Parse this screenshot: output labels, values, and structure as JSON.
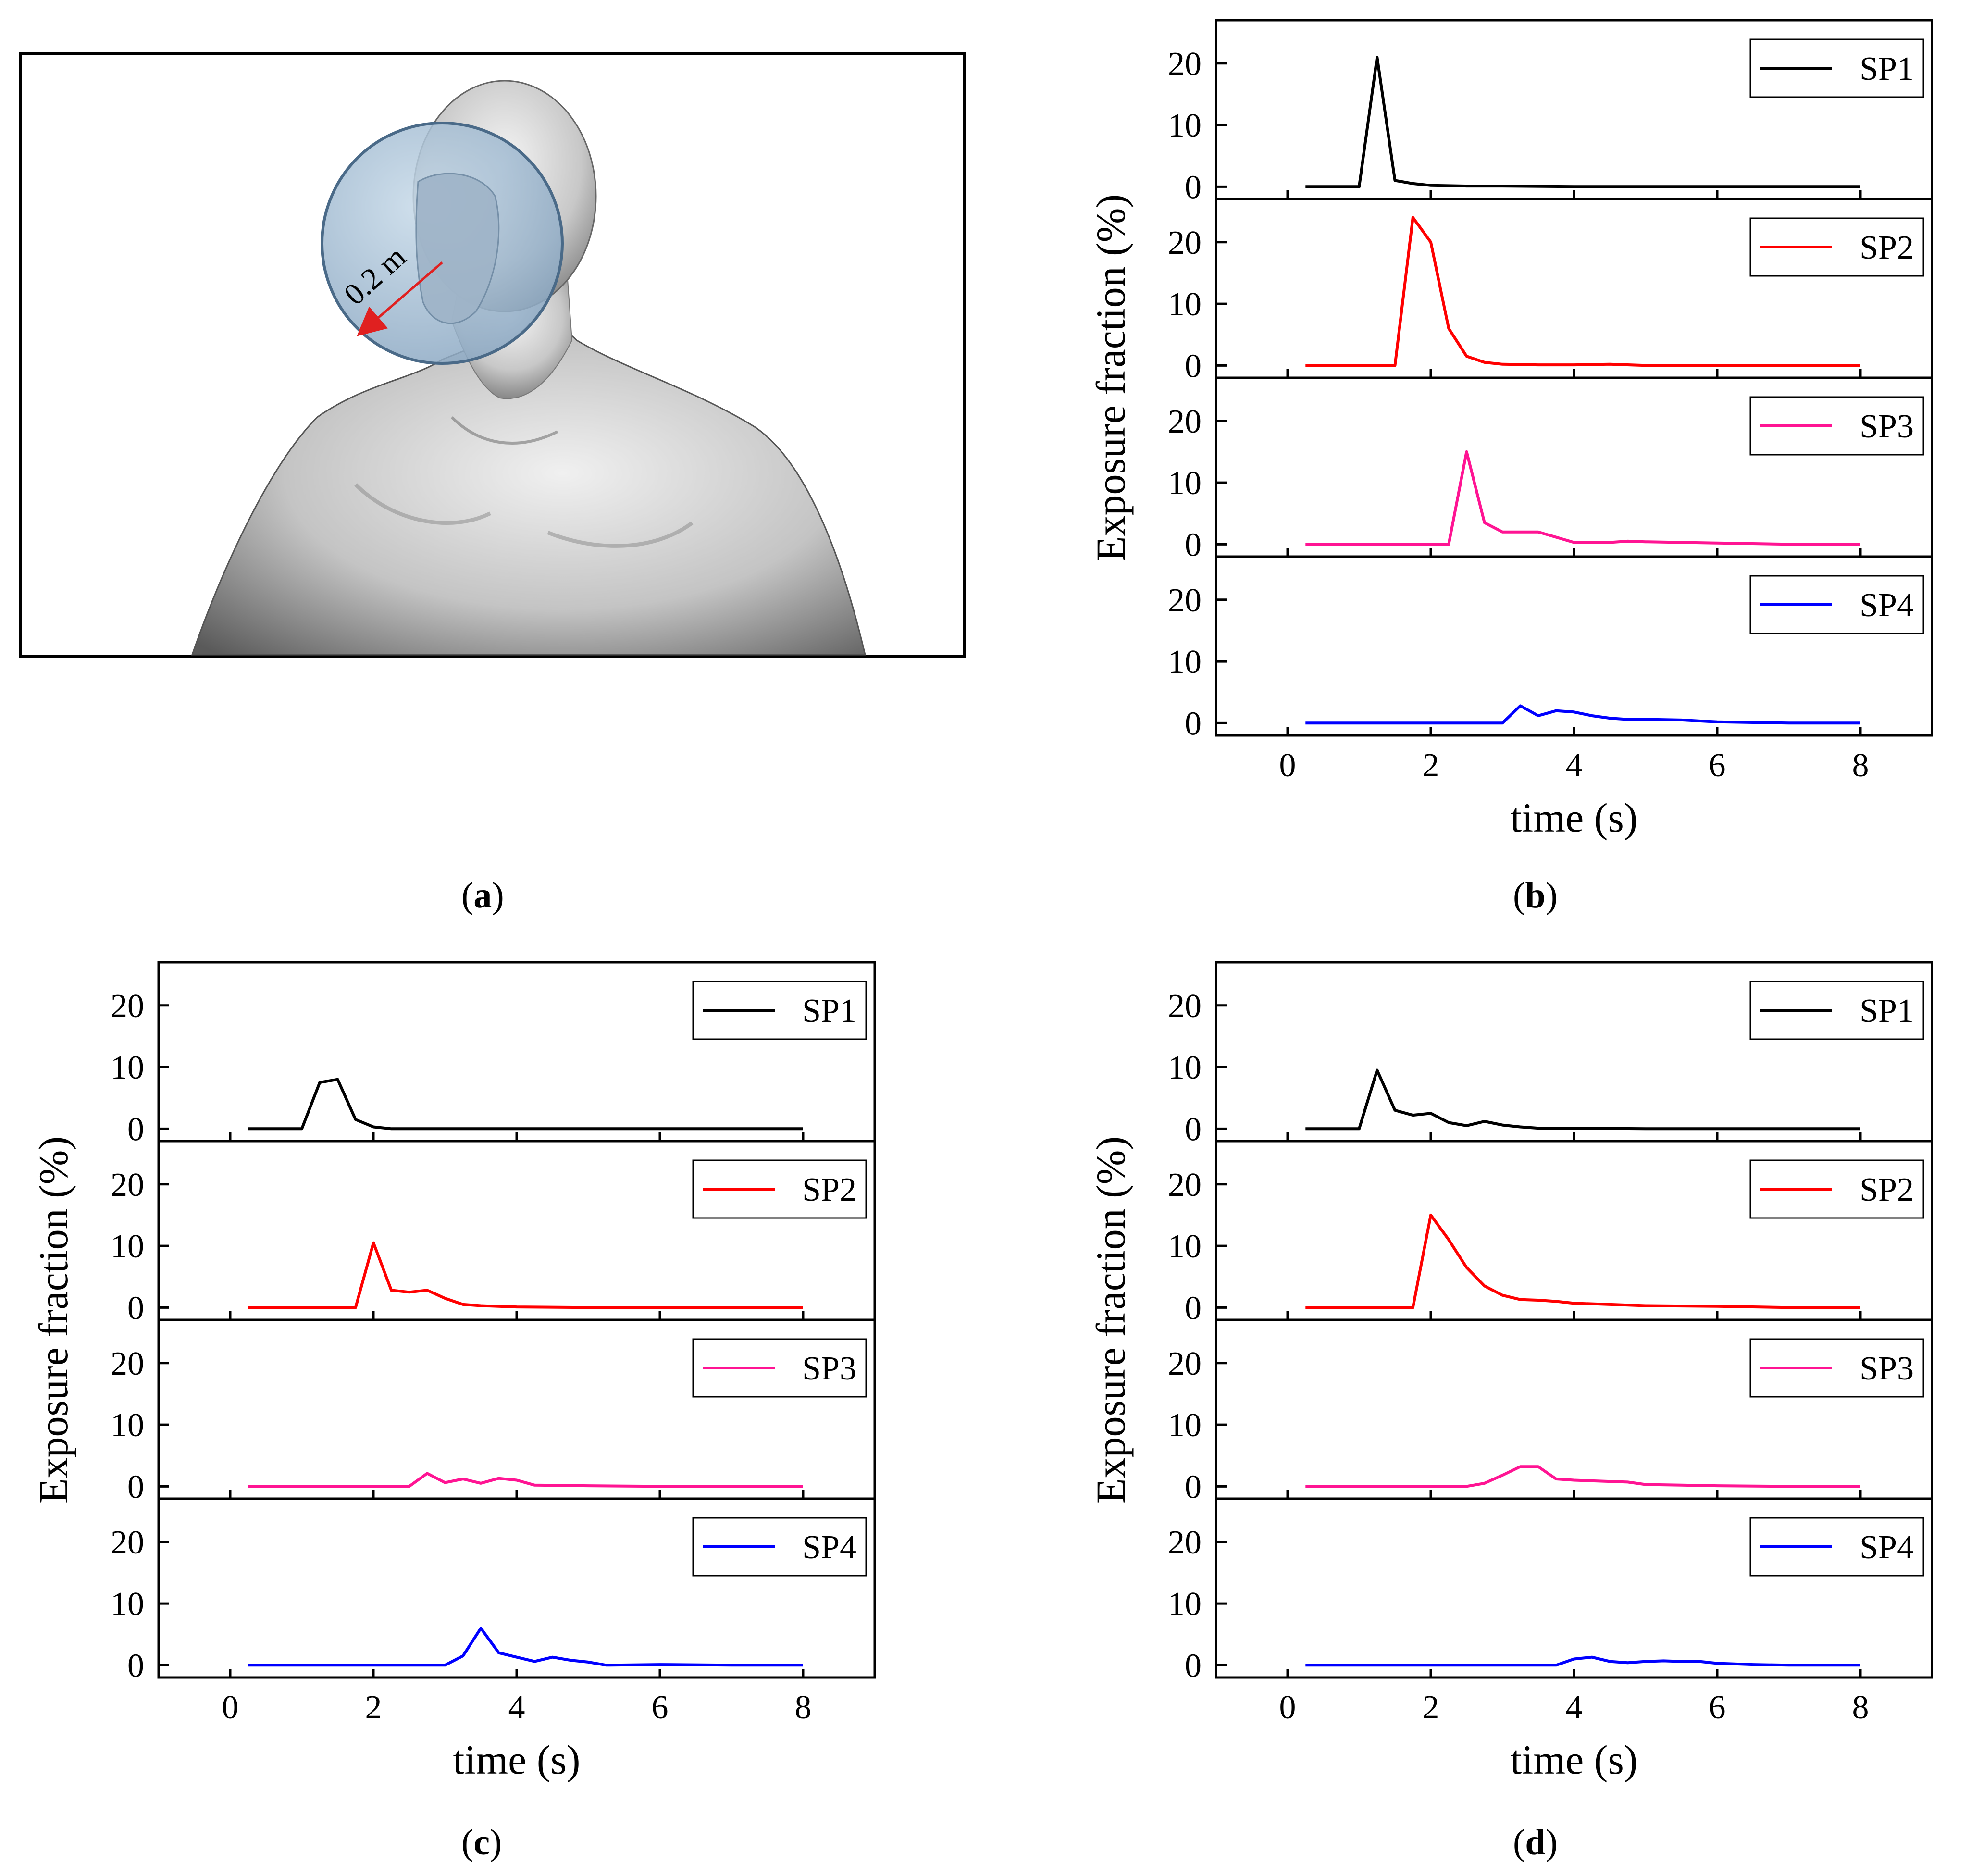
{
  "panel_a": {
    "label": "a",
    "distance_label": "0.2 m"
  },
  "captions": {
    "a": "a",
    "b": "b",
    "c": "c",
    "d": "d"
  },
  "colors": {
    "SP1": "#000000",
    "SP2": "#ff0000",
    "SP3": "#ff1493",
    "SP4": "#0000ff"
  },
  "chart_data": [
    {
      "id": "b",
      "type": "line",
      "xlabel": "time (s)",
      "ylabel": "Exposure fraction  (%)",
      "xlim": [
        -1,
        9
      ],
      "xticks": [
        0,
        2,
        4,
        6,
        8
      ],
      "ylim": [
        -2,
        27
      ],
      "yticks": [
        0,
        10,
        20
      ],
      "series": [
        {
          "name": "SP1",
          "x": [
            0.25,
            1.0,
            1.25,
            1.5,
            1.75,
            2.0,
            2.5,
            3,
            4,
            5,
            6,
            7,
            8
          ],
          "y": [
            0,
            0,
            21,
            1,
            0.5,
            0.2,
            0.1,
            0.1,
            0,
            0,
            0,
            0,
            0
          ]
        },
        {
          "name": "SP2",
          "x": [
            0.25,
            1.5,
            1.75,
            2.0,
            2.25,
            2.5,
            2.75,
            3.0,
            3.5,
            4.0,
            4.5,
            5,
            6,
            7,
            8
          ],
          "y": [
            0,
            0,
            24,
            20,
            6,
            1.5,
            0.5,
            0.2,
            0.1,
            0.1,
            0.2,
            0,
            0,
            0,
            0
          ]
        },
        {
          "name": "SP3",
          "x": [
            0.25,
            2.25,
            2.5,
            2.75,
            3.0,
            3.25,
            3.5,
            4.0,
            4.5,
            4.75,
            5,
            6,
            7,
            8
          ],
          "y": [
            0,
            0,
            15,
            3.5,
            2,
            2,
            2,
            0.3,
            0.3,
            0.5,
            0.4,
            0.2,
            0,
            0
          ]
        },
        {
          "name": "SP4",
          "x": [
            0.25,
            3.0,
            3.25,
            3.5,
            3.75,
            4.0,
            4.25,
            4.5,
            4.75,
            5,
            5.5,
            6,
            7,
            8
          ],
          "y": [
            0,
            0,
            2.8,
            1.2,
            2,
            1.8,
            1.2,
            0.8,
            0.6,
            0.6,
            0.5,
            0.2,
            0,
            0
          ]
        }
      ]
    },
    {
      "id": "c",
      "type": "line",
      "xlabel": "time (s)",
      "ylabel": "Exposure fraction  (%)",
      "xlim": [
        -1,
        9
      ],
      "xticks": [
        0,
        2,
        4,
        6,
        8
      ],
      "ylim": [
        -2,
        27
      ],
      "yticks": [
        0,
        10,
        20
      ],
      "series": [
        {
          "name": "SP1",
          "x": [
            0.25,
            1.0,
            1.25,
            1.5,
            1.75,
            2.0,
            2.25,
            2.5,
            3,
            4,
            5,
            6,
            7,
            8
          ],
          "y": [
            0,
            0,
            7.5,
            8,
            1.5,
            0.3,
            0,
            0,
            0,
            0,
            0,
            0,
            0,
            0
          ]
        },
        {
          "name": "SP2",
          "x": [
            0.25,
            1.75,
            2.0,
            2.25,
            2.5,
            2.75,
            3.0,
            3.25,
            3.5,
            4.0,
            5,
            6,
            7,
            8
          ],
          "y": [
            0,
            0,
            10.5,
            2.8,
            2.5,
            2.8,
            1.5,
            0.5,
            0.3,
            0.1,
            0,
            0,
            0,
            0
          ]
        },
        {
          "name": "SP3",
          "x": [
            0.25,
            2.5,
            2.75,
            3.0,
            3.25,
            3.5,
            3.75,
            4.0,
            4.25,
            5,
            6,
            7,
            8
          ],
          "y": [
            0,
            0,
            2.1,
            0.6,
            1.2,
            0.5,
            1.3,
            1.0,
            0.2,
            0.1,
            0,
            0,
            0
          ]
        },
        {
          "name": "SP4",
          "x": [
            0.25,
            3.0,
            3.25,
            3.5,
            3.75,
            4.0,
            4.25,
            4.5,
            4.75,
            5.0,
            5.25,
            6,
            7,
            8
          ],
          "y": [
            0,
            0,
            1.5,
            6,
            2,
            1.3,
            0.6,
            1.3,
            0.8,
            0.5,
            0,
            0.1,
            0,
            0
          ]
        }
      ]
    },
    {
      "id": "d",
      "type": "line",
      "xlabel": "time (s)",
      "ylabel": "Exposure fraction  (%)",
      "xlim": [
        -1,
        9
      ],
      "xticks": [
        0,
        2,
        4,
        6,
        8
      ],
      "ylim": [
        -2,
        27
      ],
      "yticks": [
        0,
        10,
        20
      ],
      "series": [
        {
          "name": "SP1",
          "x": [
            0.25,
            1.0,
            1.25,
            1.5,
            1.75,
            2.0,
            2.25,
            2.5,
            2.75,
            3.0,
            3.25,
            3.5,
            4,
            5,
            6,
            7,
            8
          ],
          "y": [
            0,
            0,
            9.5,
            3,
            2.2,
            2.5,
            1,
            0.5,
            1.2,
            0.6,
            0.3,
            0.1,
            0.1,
            0,
            0,
            0,
            0
          ]
        },
        {
          "name": "SP2",
          "x": [
            0.25,
            1.75,
            2.0,
            2.25,
            2.5,
            2.75,
            3.0,
            3.25,
            3.5,
            3.75,
            4.0,
            4.5,
            5,
            6,
            7,
            8
          ],
          "y": [
            0,
            0,
            15,
            11,
            6.5,
            3.5,
            2,
            1.3,
            1.2,
            1.0,
            0.7,
            0.5,
            0.3,
            0.2,
            0,
            0
          ]
        },
        {
          "name": "SP3",
          "x": [
            0.25,
            2.5,
            2.75,
            3.0,
            3.25,
            3.5,
            3.75,
            4.0,
            4.5,
            4.75,
            5.0,
            5.5,
            6,
            7,
            8
          ],
          "y": [
            0,
            0,
            0.5,
            1.8,
            3.2,
            3.2,
            1.2,
            1.0,
            0.8,
            0.7,
            0.3,
            0.2,
            0.1,
            0,
            0
          ]
        },
        {
          "name": "SP4",
          "x": [
            0.25,
            3.75,
            4.0,
            4.25,
            4.5,
            4.75,
            5.0,
            5.25,
            5.5,
            5.75,
            6.0,
            6.5,
            7,
            8
          ],
          "y": [
            0,
            0,
            1,
            1.3,
            0.6,
            0.4,
            0.6,
            0.7,
            0.6,
            0.6,
            0.3,
            0.1,
            0,
            0
          ]
        }
      ]
    }
  ]
}
